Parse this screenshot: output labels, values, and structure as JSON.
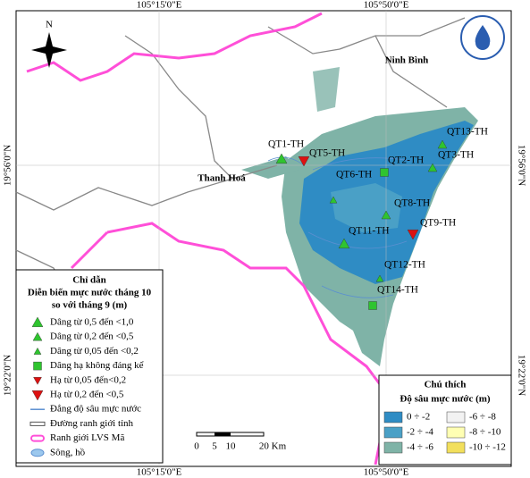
{
  "coordinates": {
    "top": [
      "105°15'0\"E",
      "105°50'0\"E"
    ],
    "bottom": [
      "105°15'0\"E",
      "105°50'0\"E"
    ],
    "left": [
      "19°56'0\"N",
      "19°22'0\"N"
    ],
    "right": [
      "19°56'0\"N",
      "19°22'0\"N"
    ]
  },
  "places": [
    "Ninh Bình",
    "Thanh Hoá"
  ],
  "north": "N",
  "stations": [
    {
      "label": "QT1-TH",
      "symbol": "triangle-large"
    },
    {
      "label": "QT5-TH",
      "symbol": "down-large"
    },
    {
      "label": "QT6-TH",
      "symbol": "triangle-small"
    },
    {
      "label": "QT2-TH",
      "symbol": "square"
    },
    {
      "label": "QT13-TH",
      "symbol": "triangle-medium"
    },
    {
      "label": "QT3-TH",
      "symbol": "triangle-medium"
    },
    {
      "label": "QT8-TH",
      "symbol": "triangle-medium"
    },
    {
      "label": "QT9-TH",
      "symbol": "down-large"
    },
    {
      "label": "QT11-TH",
      "symbol": "triangle-large"
    },
    {
      "label": "QT12-TH",
      "symbol": "triangle-small"
    },
    {
      "label": "QT14-TH",
      "symbol": "square"
    }
  ],
  "legend_trend": {
    "title": "Chỉ dẫn",
    "subtitle": [
      "Diễn biến mực nước tháng 10",
      "so với tháng 9 (m)"
    ],
    "items": [
      {
        "label": "Dâng từ 0,5 đến <1,0",
        "symbol": "triangle-large"
      },
      {
        "label": "Dâng từ 0,2 đến <0,5",
        "symbol": "triangle-medium"
      },
      {
        "label": "Dâng từ 0,05 đến <0,2",
        "symbol": "triangle-small"
      },
      {
        "label": "Dâng hạ không đáng kể",
        "symbol": "square"
      },
      {
        "label": "Hạ từ 0,05 đến<0,2",
        "symbol": "down-small"
      },
      {
        "label": "Hạ từ 0,2 đến <0,5",
        "symbol": "down-large"
      },
      {
        "label": "Đẳng độ sâu mực nước",
        "symbol": "isoline"
      },
      {
        "label": "Đường ranh giới tỉnh",
        "symbol": "province"
      },
      {
        "label": "Ranh giới LVS Mã",
        "symbol": "basin"
      },
      {
        "label": "Sông, hồ",
        "symbol": "water"
      }
    ]
  },
  "legend_depth": {
    "title": "Chú thích",
    "subtitle": "Độ sâu mực nước (m)",
    "items": [
      {
        "label": "0 ÷ -2",
        "color": "#2f8cc4"
      },
      {
        "label": "-2 ÷ -4",
        "color": "#4aa0c6"
      },
      {
        "label": "-4 ÷ -6",
        "color": "#7fb3a7"
      },
      {
        "label": "-6 ÷ -8",
        "color": "#f2f2f2"
      },
      {
        "label": "-8 ÷ -10",
        "color": "#ffffb3"
      },
      {
        "label": "-10 ÷ -12",
        "color": "#f2df5c"
      }
    ]
  },
  "scale_bar": [
    "0",
    "5",
    "10",
    "20 Km"
  ]
}
